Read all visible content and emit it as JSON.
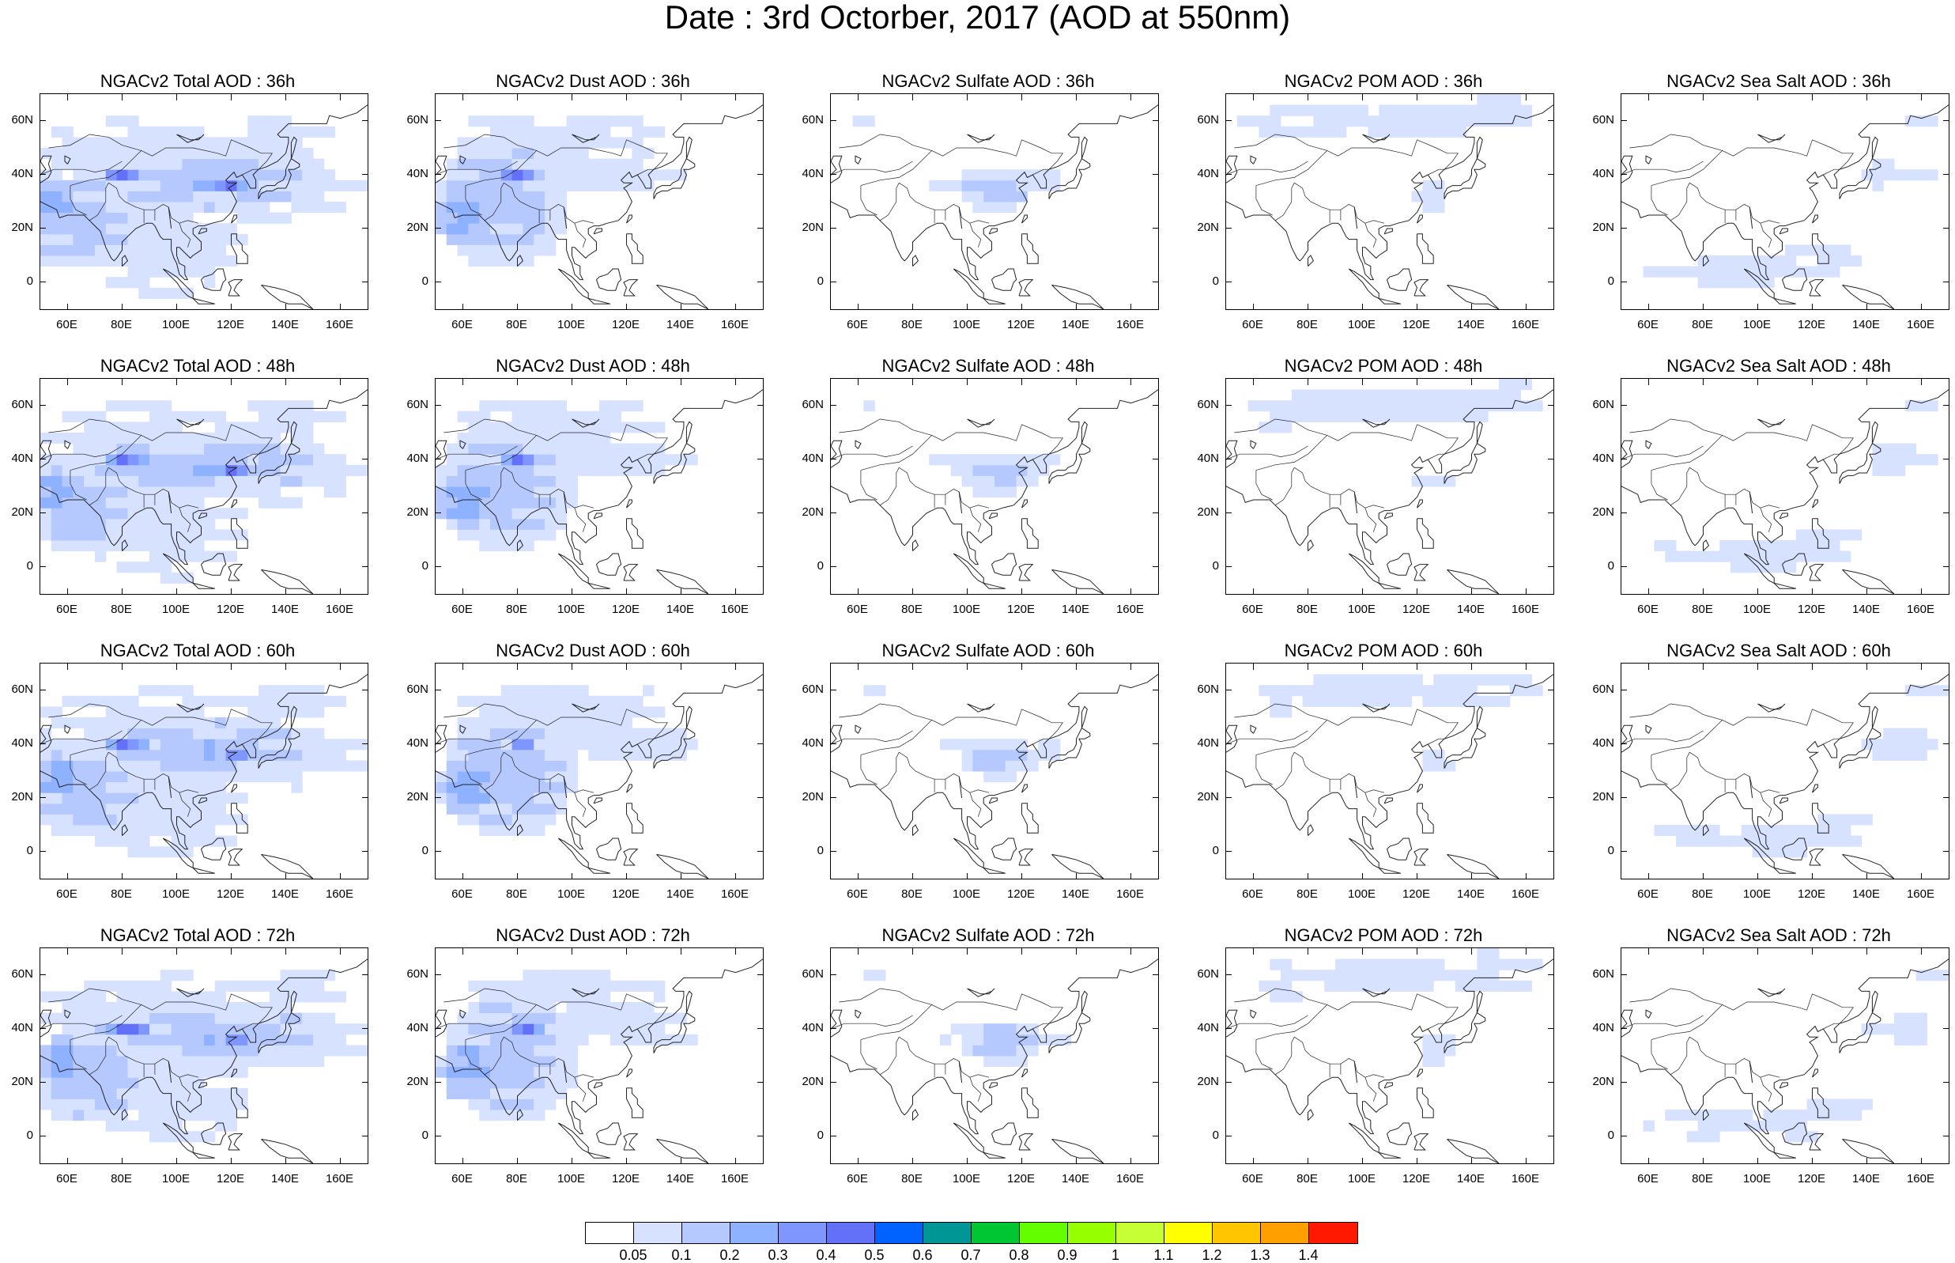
{
  "title": "Date : 3rd Octorber, 2017 (AOD at 550nm)",
  "panels": [
    {
      "title": "NGACv2 Total AOD : 36h",
      "species": "total",
      "hour": 36
    },
    {
      "title": "NGACv2 Dust AOD : 36h",
      "species": "dust",
      "hour": 36
    },
    {
      "title": "NGACv2 Sulfate AOD : 36h",
      "species": "sulfate",
      "hour": 36
    },
    {
      "title": "NGACv2 POM AOD : 36h",
      "species": "pom",
      "hour": 36
    },
    {
      "title": "NGACv2 Sea Salt AOD : 36h",
      "species": "seasalt",
      "hour": 36
    },
    {
      "title": "NGACv2 Total AOD : 48h",
      "species": "total",
      "hour": 48
    },
    {
      "title": "NGACv2 Dust AOD : 48h",
      "species": "dust",
      "hour": 48
    },
    {
      "title": "NGACv2 Sulfate AOD : 48h",
      "species": "sulfate",
      "hour": 48
    },
    {
      "title": "NGACv2 POM AOD : 48h",
      "species": "pom",
      "hour": 48
    },
    {
      "title": "NGACv2 Sea Salt AOD : 48h",
      "species": "seasalt",
      "hour": 48
    },
    {
      "title": "NGACv2 Total AOD : 60h",
      "species": "total",
      "hour": 60
    },
    {
      "title": "NGACv2 Dust AOD : 60h",
      "species": "dust",
      "hour": 60
    },
    {
      "title": "NGACv2 Sulfate AOD : 60h",
      "species": "sulfate",
      "hour": 60
    },
    {
      "title": "NGACv2 POM AOD : 60h",
      "species": "pom",
      "hour": 60
    },
    {
      "title": "NGACv2 Sea Salt AOD : 60h",
      "species": "seasalt",
      "hour": 60
    },
    {
      "title": "NGACv2 Total AOD : 72h",
      "species": "total",
      "hour": 72
    },
    {
      "title": "NGACv2 Dust AOD : 72h",
      "species": "dust",
      "hour": 72
    },
    {
      "title": "NGACv2 Sulfate AOD : 72h",
      "species": "sulfate",
      "hour": 72
    },
    {
      "title": "NGACv2 POM AOD : 72h",
      "species": "pom",
      "hour": 72
    },
    {
      "title": "NGACv2 Sea Salt  AOD : 72h",
      "species": "seasalt",
      "hour": 72
    }
  ],
  "axes": {
    "lat_labels": [
      "60N",
      "40N",
      "20N",
      "0"
    ],
    "lat_values": [
      60,
      40,
      20,
      0
    ],
    "lon_labels": [
      "60E",
      "80E",
      "100E",
      "120E",
      "140E",
      "160E"
    ],
    "lon_values": [
      60,
      80,
      100,
      120,
      140,
      160
    ],
    "lon_range": [
      50,
      170
    ],
    "lat_range": [
      -10,
      70
    ]
  },
  "colorbar": {
    "labels": [
      "0.05",
      "0.1",
      "0.2",
      "0.3",
      "0.4",
      "0.5",
      "0.6",
      "0.7",
      "0.8",
      "0.9",
      "1",
      "1.1",
      "1.2",
      "1.3",
      "1.4"
    ],
    "colors": [
      "#ffffff",
      "#d6e2ff",
      "#b5c9ff",
      "#8eb2ff",
      "#7f96ff",
      "#6370f8",
      "#0063ff",
      "#009696",
      "#00c633",
      "#63ff00",
      "#96ff00",
      "#c6ff33",
      "#ffff00",
      "#ffc600",
      "#ffa000",
      "#ff7c00",
      "#ff1900"
    ]
  }
}
